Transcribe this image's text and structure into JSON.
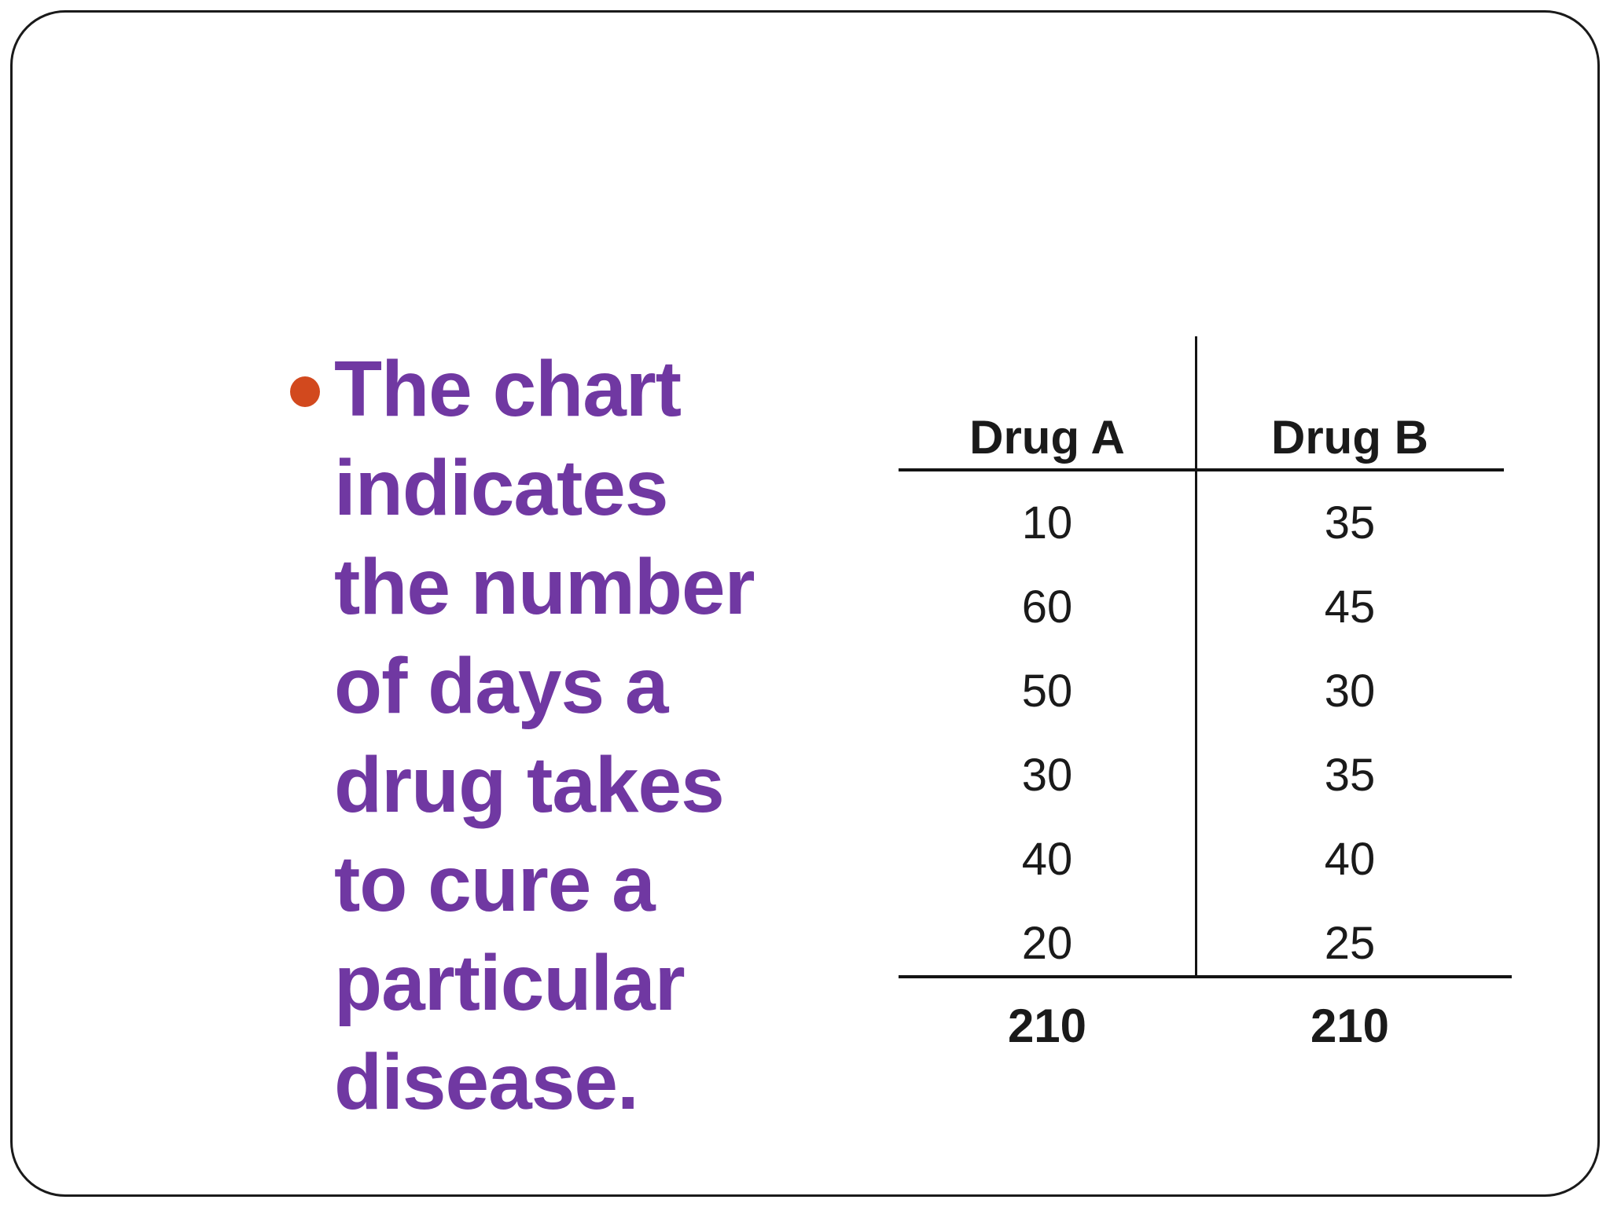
{
  "slide": {
    "bullet_text": {
      "full": "The chart indicates the number of days a drug takes to cure a particular disease.",
      "lines": [
        "The chart",
        "indicates",
        "the number",
        "of days a",
        "drug takes",
        "to cure a",
        "particular",
        "disease."
      ]
    },
    "table": {
      "columns": [
        "Drug A",
        "Drug B"
      ],
      "rows": [
        [
          "10",
          "35"
        ],
        [
          "60",
          "45"
        ],
        [
          "50",
          "30"
        ],
        [
          "30",
          "35"
        ],
        [
          "40",
          "40"
        ],
        [
          "20",
          "25"
        ]
      ],
      "totals": [
        "210",
        "210"
      ]
    },
    "colors": {
      "text_purple": "#7038a2",
      "bullet_orange": "#d2491e",
      "line_black": "#131313",
      "border_black": "#1a1a1a",
      "background": "#ffffff"
    }
  },
  "chart_data": {
    "type": "table",
    "title": "Number of days a drug takes to cure a particular disease",
    "categories": [
      "Drug A",
      "Drug B"
    ],
    "series": [
      {
        "name": "Drug A",
        "values": [
          10,
          60,
          50,
          30,
          40,
          20
        ],
        "total": 210
      },
      {
        "name": "Drug B",
        "values": [
          35,
          45,
          30,
          35,
          40,
          25
        ],
        "total": 210
      }
    ]
  }
}
